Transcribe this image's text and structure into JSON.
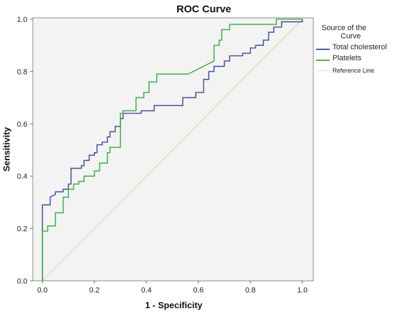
{
  "chart_data": {
    "type": "line",
    "title": "ROC Curve",
    "xlabel": "1 - Specificity",
    "ylabel": "Sensitivity",
    "xlim": [
      0,
      1
    ],
    "ylim": [
      0,
      1
    ],
    "x_ticks": [
      "0.0",
      "0.2",
      "0.4",
      "0.6",
      "0.8",
      "1.0"
    ],
    "y_ticks": [
      "0.0",
      "0.2",
      "0.4",
      "0.6",
      "0.8",
      "1.0"
    ],
    "legend_title_lines": [
      "Source of the",
      "Curve"
    ],
    "legend_position": "right",
    "grid": false,
    "series": [
      {
        "name": "Total cholesterol",
        "color": "#4a5a9e",
        "points": [
          [
            0,
            0
          ],
          [
            0,
            0.29
          ],
          [
            0.03,
            0.29
          ],
          [
            0.03,
            0.32
          ],
          [
            0.05,
            0.33
          ],
          [
            0.05,
            0.34
          ],
          [
            0.08,
            0.34
          ],
          [
            0.08,
            0.35
          ],
          [
            0.1,
            0.35
          ],
          [
            0.1,
            0.37
          ],
          [
            0.11,
            0.37
          ],
          [
            0.11,
            0.43
          ],
          [
            0.15,
            0.43
          ],
          [
            0.15,
            0.44
          ],
          [
            0.16,
            0.44
          ],
          [
            0.16,
            0.46
          ],
          [
            0.18,
            0.46
          ],
          [
            0.18,
            0.48
          ],
          [
            0.2,
            0.48
          ],
          [
            0.2,
            0.49
          ],
          [
            0.21,
            0.49
          ],
          [
            0.21,
            0.52
          ],
          [
            0.23,
            0.52
          ],
          [
            0.23,
            0.53
          ],
          [
            0.25,
            0.53
          ],
          [
            0.25,
            0.55
          ],
          [
            0.26,
            0.55
          ],
          [
            0.26,
            0.57
          ],
          [
            0.28,
            0.57
          ],
          [
            0.28,
            0.59
          ],
          [
            0.3,
            0.59
          ],
          [
            0.3,
            0.62
          ],
          [
            0.31,
            0.62
          ],
          [
            0.31,
            0.64
          ],
          [
            0.38,
            0.64
          ],
          [
            0.38,
            0.65
          ],
          [
            0.43,
            0.65
          ],
          [
            0.43,
            0.67
          ],
          [
            0.54,
            0.67
          ],
          [
            0.54,
            0.7
          ],
          [
            0.59,
            0.7
          ],
          [
            0.59,
            0.72
          ],
          [
            0.62,
            0.72
          ],
          [
            0.62,
            0.77
          ],
          [
            0.64,
            0.77
          ],
          [
            0.64,
            0.8
          ],
          [
            0.66,
            0.8
          ],
          [
            0.66,
            0.82
          ],
          [
            0.7,
            0.82
          ],
          [
            0.7,
            0.84
          ],
          [
            0.72,
            0.84
          ],
          [
            0.72,
            0.86
          ],
          [
            0.77,
            0.86
          ],
          [
            0.77,
            0.87
          ],
          [
            0.8,
            0.87
          ],
          [
            0.8,
            0.89
          ],
          [
            0.82,
            0.89
          ],
          [
            0.82,
            0.9
          ],
          [
            0.85,
            0.9
          ],
          [
            0.85,
            0.92
          ],
          [
            0.87,
            0.92
          ],
          [
            0.87,
            0.95
          ],
          [
            0.89,
            0.95
          ],
          [
            0.89,
            0.97
          ],
          [
            0.92,
            0.97
          ],
          [
            0.92,
            0.99
          ],
          [
            1,
            0.99
          ],
          [
            1,
            1
          ]
        ]
      },
      {
        "name": "Platelets",
        "color": "#4caf50",
        "points": [
          [
            0,
            0
          ],
          [
            0,
            0.19
          ],
          [
            0.02,
            0.19
          ],
          [
            0.02,
            0.21
          ],
          [
            0.05,
            0.21
          ],
          [
            0.05,
            0.26
          ],
          [
            0.08,
            0.26
          ],
          [
            0.08,
            0.32
          ],
          [
            0.1,
            0.32
          ],
          [
            0.1,
            0.35
          ],
          [
            0.12,
            0.35
          ],
          [
            0.12,
            0.37
          ],
          [
            0.14,
            0.37
          ],
          [
            0.14,
            0.38
          ],
          [
            0.16,
            0.38
          ],
          [
            0.16,
            0.4
          ],
          [
            0.2,
            0.4
          ],
          [
            0.2,
            0.42
          ],
          [
            0.22,
            0.42
          ],
          [
            0.22,
            0.45
          ],
          [
            0.25,
            0.45
          ],
          [
            0.25,
            0.49
          ],
          [
            0.26,
            0.49
          ],
          [
            0.26,
            0.51
          ],
          [
            0.3,
            0.51
          ],
          [
            0.3,
            0.64
          ],
          [
            0.31,
            0.64
          ],
          [
            0.31,
            0.65
          ],
          [
            0.36,
            0.65
          ],
          [
            0.36,
            0.7
          ],
          [
            0.39,
            0.7
          ],
          [
            0.39,
            0.72
          ],
          [
            0.41,
            0.72
          ],
          [
            0.41,
            0.76
          ],
          [
            0.44,
            0.76
          ],
          [
            0.44,
            0.79
          ],
          [
            0.56,
            0.79
          ],
          [
            0.66,
            0.84
          ],
          [
            0.66,
            0.9
          ],
          [
            0.68,
            0.9
          ],
          [
            0.68,
            0.92
          ],
          [
            0.69,
            0.92
          ],
          [
            0.69,
            0.96
          ],
          [
            0.72,
            0.96
          ],
          [
            0.72,
            0.98
          ],
          [
            0.9,
            0.98
          ],
          [
            0.9,
            1
          ],
          [
            1,
            1
          ]
        ]
      },
      {
        "name": "Reference Line",
        "color": "#d9d9a6",
        "points": [
          [
            0,
            0
          ],
          [
            1,
            1
          ]
        ]
      }
    ]
  }
}
